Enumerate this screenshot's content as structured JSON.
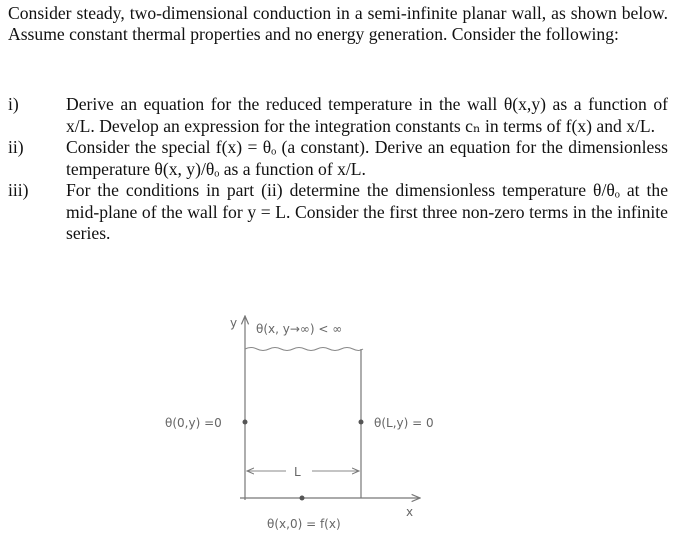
{
  "intro": "Consider steady, two-dimensional conduction in a semi-infinite planar wall, as shown below. Assume constant thermal properties and no energy generation. Consider the following:",
  "items": [
    {
      "num": "i)",
      "text": "Derive an equation for the reduced temperature in the wall θ(x,y) as a function of x/L. Develop an expression for the integration constants cₙ in terms of f(x) and x/L."
    },
    {
      "num": "ii)",
      "text": "Consider the special f(x) = θₒ (a constant). Derive an equation for the dimensionless temperature θ(x, y)/θₒ as a function of x/L."
    },
    {
      "num": "iii)",
      "text": "For the conditions in part (ii) determine the dimensionless temperature θ/θₒ at the mid-plane of the wall for y = L. Consider the first three non-zero terms in the infinite series."
    }
  ],
  "diagram": {
    "y_axis": "y",
    "x_axis": "x",
    "top_bc": "θ(x, y→∞) < ∞",
    "left_bc": "θ(0,y) =0",
    "right_bc": "θ(L,y) = 0",
    "bottom_bc": "θ(x,0) = f(x)",
    "width_label": "L"
  }
}
